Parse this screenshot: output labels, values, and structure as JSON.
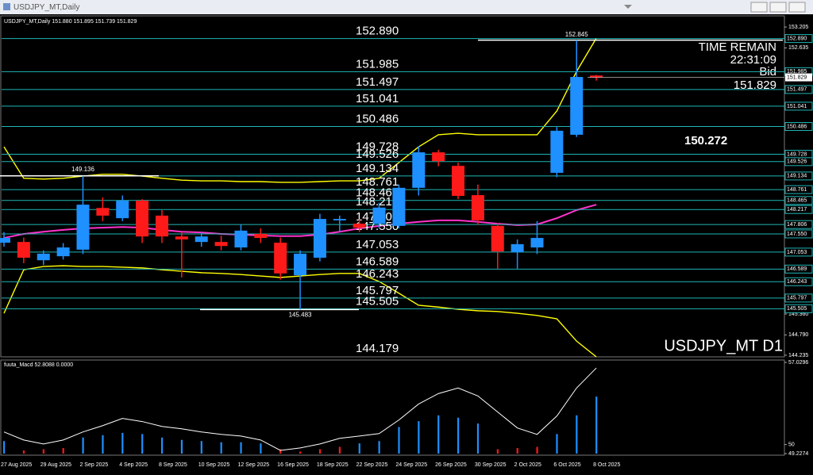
{
  "window": {
    "title": "USDJPY_MT,Daily"
  },
  "chart_data": {
    "type": "candlestick",
    "header": "USDJPY_MT,Daily  151.880 151.895 151.739 151.829",
    "categories": [
      "27 Aug 2025",
      null,
      "29 Aug 2025",
      null,
      "2 Sep 2025",
      null,
      "4 Sep 2025",
      null,
      "8 Sep 2025",
      null,
      "10 Sep 2025",
      null,
      "12 Sep 2025",
      null,
      "16 Sep 2025",
      null,
      "18 Sep 2025",
      null,
      "22 Sep 2025",
      null,
      "24 Sep 2025",
      null,
      "26 Sep 2025",
      null,
      "30 Sep 2025",
      null,
      "2 Oct 2025",
      null,
      "6 Oct 2025",
      null,
      "8 Oct 2025"
    ],
    "open": [
      147.31,
      147.33,
      146.83,
      146.94,
      147.12,
      148.26,
      147.98,
      148.46,
      148.05,
      147.48,
      147.33,
      147.33,
      147.18,
      147.55,
      147.31,
      146.42,
      146.9,
      147.92,
      147.83,
      147.83,
      147.77,
      148.81,
      149.78,
      149.41,
      148.61,
      147.77,
      147.05,
      147.18,
      149.22,
      150.26,
      151.88
    ],
    "high": [
      147.6,
      147.45,
      147.1,
      147.3,
      149.136,
      148.55,
      148.6,
      148.5,
      148.2,
      147.6,
      147.6,
      147.5,
      147.8,
      147.7,
      147.45,
      147.1,
      148.1,
      148.05,
      147.95,
      148.4,
      148.9,
      149.95,
      149.85,
      149.5,
      148.9,
      147.85,
      147.4,
      147.9,
      150.47,
      152.845,
      151.895
    ],
    "low": [
      147.2,
      146.75,
      146.7,
      146.85,
      147.0,
      147.9,
      147.9,
      147.3,
      147.3,
      146.36,
      147.2,
      147.1,
      147.1,
      147.3,
      146.3,
      145.483,
      146.8,
      147.6,
      147.6,
      147.7,
      147.7,
      148.6,
      149.4,
      148.5,
      147.8,
      146.6,
      146.6,
      147.0,
      149.1,
      150.2,
      151.739
    ],
    "close": [
      147.44,
      146.9,
      147.01,
      147.18,
      148.35,
      148.05,
      148.46,
      147.48,
      147.48,
      147.4,
      147.48,
      147.22,
      147.64,
      147.44,
      146.47,
      147.01,
      147.96,
      147.96,
      147.72,
      148.27,
      148.81,
      149.78,
      149.54,
      148.59,
      147.92,
      147.07,
      147.27,
      147.44,
      150.37,
      151.84,
      151.829
    ],
    "up_color": "#1e90ff",
    "down_color": "#ff1a1a",
    "ylim": [
      144.19,
      153.51
    ],
    "yticks": [
      153.205,
      152.635,
      {
        "value": 145.36,
        "label": "145.360"
      },
      {
        "value": 144.79,
        "label": "144.790"
      },
      144.235
    ],
    "levels": [
      {
        "value": 152.89,
        "label": "152.890"
      },
      151.985,
      151.497,
      151.041,
      150.486,
      149.728,
      149.526,
      149.134,
      148.761,
      148.465,
      148.217,
      147.806,
      {
        "value": 147.55,
        "label": "147.550"
      },
      147.053,
      146.589,
      146.243,
      145.797,
      145.505
    ],
    "level_color": "#1fb5b5",
    "markers": [
      149.136,
      145.483,
      152.845
    ],
    "lines": [
      {
        "color": "#ffff00",
        "values": [
          149.93,
          149.07,
          149.05,
          149.07,
          149.13,
          149.18,
          149.18,
          149.13,
          149.07,
          149.02,
          149.0,
          149.0,
          148.98,
          148.98,
          148.96,
          148.96,
          148.98,
          149.0,
          149.0,
          149.07,
          149.5,
          149.93,
          150.26,
          150.3,
          150.26,
          150.26,
          150.26,
          150.26,
          150.91,
          151.99,
          152.9
        ]
      },
      {
        "color": "#ffff00",
        "values": [
          145.38,
          146.57,
          146.66,
          146.68,
          146.66,
          146.66,
          146.64,
          146.62,
          146.57,
          146.53,
          146.49,
          146.47,
          146.44,
          146.4,
          146.36,
          146.4,
          146.44,
          146.47,
          146.47,
          146.25,
          145.93,
          145.6,
          145.55,
          145.49,
          145.45,
          145.43,
          145.38,
          145.32,
          145.23,
          144.62,
          144.19
        ]
      },
      {
        "color": "#ff33cc",
        "values": [
          147.44,
          147.55,
          147.61,
          147.66,
          147.7,
          147.72,
          147.74,
          147.72,
          147.66,
          147.61,
          147.59,
          147.55,
          147.53,
          147.51,
          147.49,
          147.49,
          147.53,
          147.61,
          147.7,
          147.77,
          147.83,
          147.88,
          147.92,
          147.92,
          147.88,
          147.83,
          147.79,
          147.81,
          147.98,
          148.2,
          148.35
        ]
      }
    ],
    "time_remain_label": "TIME REMAIN",
    "time_remain": "22:31:09",
    "bid_label": "Bid",
    "bid": 151.829,
    "mid_price": 150.272,
    "bottom_price": 144.179,
    "symbol_label": "USDJPY_MT D1",
    "macd": {
      "title": "fuuta_Macd 52.8088 0.0000",
      "ylim": [
        49.2274,
        57.0296
      ],
      "yticks": [
        57.0296,
        50,
        49.2274
      ],
      "line": {
        "color": "#ffffff",
        "values": [
          51.08,
          50.39,
          50.05,
          50.39,
          51.08,
          51.62,
          52.24,
          51.97,
          51.55,
          51.35,
          51.08,
          50.87,
          50.73,
          50.39,
          49.5,
          49.71,
          50.05,
          50.53,
          50.73,
          50.94,
          52.1,
          53.47,
          54.36,
          54.84,
          54.16,
          52.79,
          51.42,
          50.87,
          52.44,
          54.84,
          56.55
        ]
      },
      "histogram": [
        50.3,
        49.5,
        49.6,
        49.7,
        50.6,
        50.8,
        51.0,
        50.9,
        50.6,
        50.4,
        50.3,
        50.2,
        50.2,
        50.1,
        49.6,
        49.4,
        49.6,
        49.8,
        50.1,
        50.3,
        51.5,
        52.0,
        52.5,
        52.3,
        51.8,
        49.6,
        49.7,
        49.8,
        50.9,
        52.5,
        54.1
      ],
      "histogram_colors": [
        "#1e90ff",
        "#ff1a1a",
        "#ff1a1a",
        "#ff1a1a",
        "#1e90ff",
        "#1e90ff",
        "#1e90ff",
        "#1e90ff",
        "#1e90ff",
        "#1e90ff",
        "#1e90ff",
        "#1e90ff",
        "#1e90ff",
        "#1e90ff",
        "#ff1a1a",
        "#ff1a1a",
        "#ff1a1a",
        "#ff1a1a",
        "#1e90ff",
        "#1e90ff",
        "#1e90ff",
        "#1e90ff",
        "#1e90ff",
        "#1e90ff",
        "#1e90ff",
        "#ff1a1a",
        "#ff1a1a",
        "#ff1a1a",
        "#1e90ff",
        "#1e90ff",
        "#1e90ff"
      ]
    }
  }
}
